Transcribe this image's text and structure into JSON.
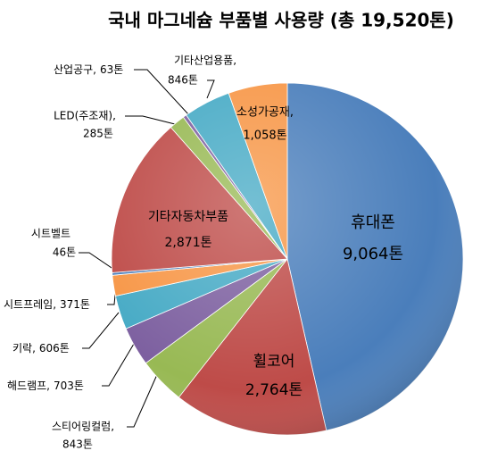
{
  "chart_data": {
    "type": "pie",
    "title": "국내 마그네슘 부품별 사용량 (총 19,520톤)",
    "categories": [
      "휴대폰",
      "휠코어",
      "스티어링컬럼,",
      "해드램프,",
      "키락,",
      "시트프레임,",
      "시트벨트",
      "기타자동차부품",
      "LED(주조재),",
      "산업공구,",
      "기타산업용품,",
      "소성가공재,"
    ],
    "values": [
      9064,
      2764,
      843,
      703,
      606,
      371,
      46,
      2871,
      285,
      63,
      846,
      1058
    ],
    "value_labels": [
      "9,064톤",
      "2,764톤",
      "843톤",
      "703톤",
      "606톤",
      "371톤",
      "46톤",
      "2,871톤",
      "285톤",
      "63톤",
      "846톤",
      "1,058톤"
    ],
    "colors": [
      "#4a7ebb",
      "#be4b48",
      "#98b954",
      "#7d60a0",
      "#46aac5",
      "#f79646",
      "#4a7ebb",
      "#be4b48",
      "#98b954",
      "#7d60a0",
      "#46aac5",
      "#f79646"
    ]
  }
}
